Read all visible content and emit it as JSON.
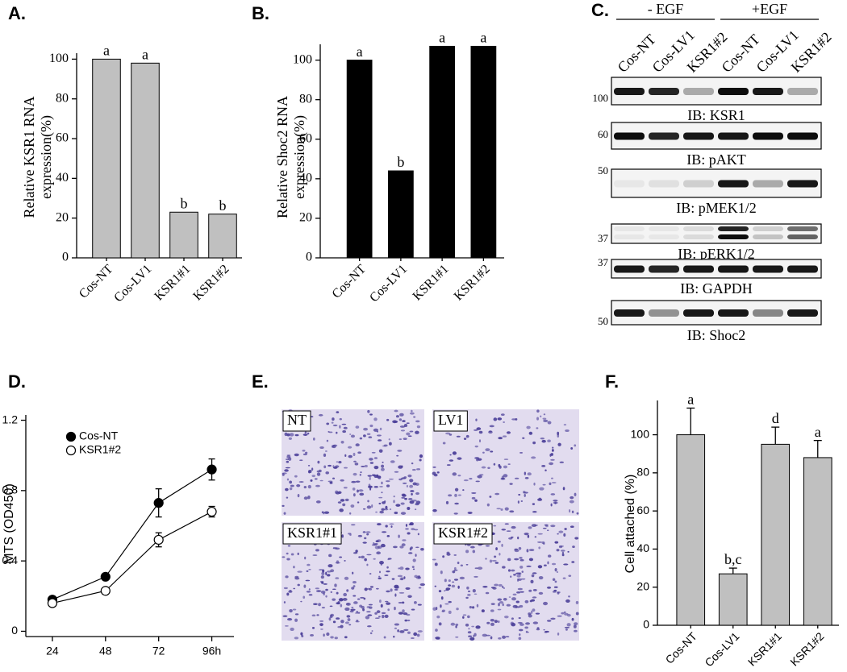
{
  "chart_data": [
    {
      "type": "bar",
      "label": "A.",
      "ylabel": [
        "Relative KSR1 RNA",
        "expression(%)"
      ],
      "categories": [
        "Cos-NT",
        "Cos-LV1",
        "KSR1#1",
        "KSR1#2"
      ],
      "values": [
        100,
        98,
        23,
        22
      ],
      "annotations": [
        "a",
        "a",
        "b",
        "b"
      ],
      "color": "#c0c0c0",
      "ylim": [
        0,
        103
      ],
      "yticks": [
        0,
        20,
        40,
        60,
        80,
        100
      ]
    },
    {
      "type": "bar",
      "label": "B.",
      "ylabel": [
        "Relative Shoc2  RNA",
        "expression(%)"
      ],
      "categories": [
        "Cos-NT",
        "Cos-LV1",
        "KSR1#1",
        "KSR1#2"
      ],
      "values": [
        100,
        44,
        107,
        107
      ],
      "annotations": [
        "a",
        "b",
        "a",
        "a"
      ],
      "color": "#000000",
      "ylim": [
        0,
        108
      ],
      "yticks": [
        0,
        20,
        40,
        60,
        80,
        100
      ]
    },
    {
      "type": "line",
      "label": "D.",
      "ylabel": "MTS (OD450)",
      "x": [
        24,
        48,
        72,
        96
      ],
      "xlim": [
        12,
        106
      ],
      "xticks": [
        24,
        48,
        72,
        {
          "value": 96,
          "label": "96h"
        }
      ],
      "ylim": [
        -0.03,
        1.23
      ],
      "yticks": [
        0,
        0.4,
        0.8,
        1.2
      ],
      "legend": "upper left",
      "series": [
        {
          "name": "Cos-NT",
          "color": "#000000",
          "values": [
            0.18,
            0.31,
            0.73,
            0.92
          ],
          "errors": [
            0.01,
            0.01,
            0.08,
            0.06
          ]
        },
        {
          "name": "KSR1#2",
          "color": "#ffffff",
          "values": [
            0.16,
            0.23,
            0.52,
            0.68
          ],
          "errors": [
            0.01,
            0.01,
            0.04,
            0.03
          ]
        }
      ]
    },
    {
      "type": "bar",
      "label": "F.",
      "ylabel": "Cell attached (%)",
      "categories": [
        "Cos-NT",
        "Cos-LV1",
        "KSR1#1",
        "KSR1#2"
      ],
      "values": [
        100,
        27,
        95,
        88
      ],
      "errors": [
        14,
        3,
        9,
        9
      ],
      "annotations": [
        "a",
        "b,c",
        "d",
        "a"
      ],
      "color": "#c0c0c0",
      "ylim": [
        0,
        118
      ],
      "yticks": [
        0,
        20,
        40,
        60,
        80,
        100
      ]
    }
  ],
  "blot": {
    "label": "C.",
    "groups": [
      "- EGF",
      "+EGF"
    ],
    "lanes": [
      "Cos-NT",
      "Cos-LV1",
      "KSR1#2",
      "Cos-NT",
      "Cos-LV1",
      "KSR1#2"
    ],
    "rows": [
      {
        "marker": "100",
        "label": "IB: KSR1"
      },
      {
        "marker": "60",
        "label": "IB: pAKT"
      },
      {
        "marker": "50",
        "label": "IB: pMEK1/2"
      },
      {
        "marker": "37",
        "label": "IB: pERK1/2"
      },
      {
        "marker": "37",
        "label": "IB: GAPDH"
      },
      {
        "marker": "50",
        "label": "IB: Shoc2"
      }
    ]
  },
  "micrographs": {
    "label": "E.",
    "images": [
      "NT",
      "LV1",
      "KSR1#1",
      "KSR1#2"
    ]
  }
}
